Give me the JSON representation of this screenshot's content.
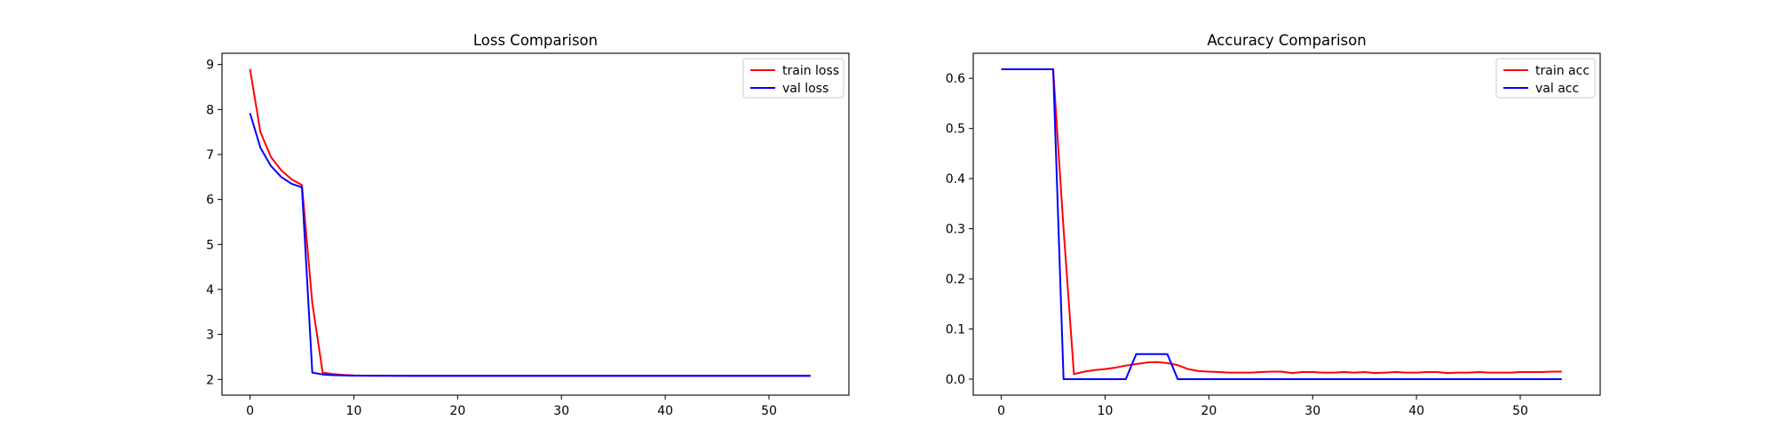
{
  "chart_data": [
    {
      "type": "line",
      "title": "Loss Comparison",
      "xlabel": "",
      "ylabel": "",
      "xlim": [
        -2.7,
        57.7
      ],
      "ylim": [
        1.65,
        9.25
      ],
      "xticks": [
        0,
        10,
        20,
        30,
        40,
        50
      ],
      "xtick_labels": [
        "0",
        "10",
        "20",
        "30",
        "40",
        "50"
      ],
      "yticks": [
        2,
        3,
        4,
        5,
        6,
        7,
        8,
        9
      ],
      "ytick_labels": [
        "2",
        "3",
        "4",
        "5",
        "6",
        "7",
        "8",
        "9"
      ],
      "grid": false,
      "legend": "top-right",
      "x": [
        0,
        1,
        2,
        3,
        4,
        5,
        6,
        7,
        8,
        9,
        10,
        11,
        12,
        13,
        14,
        15,
        16,
        17,
        18,
        19,
        20,
        21,
        22,
        23,
        24,
        25,
        26,
        27,
        28,
        29,
        30,
        31,
        32,
        33,
        34,
        35,
        36,
        37,
        38,
        39,
        40,
        41,
        42,
        43,
        44,
        45,
        46,
        47,
        48,
        49,
        50,
        51,
        52,
        53,
        54
      ],
      "series": [
        {
          "name": "train loss",
          "color": "#ff0000",
          "values": [
            8.9,
            7.5,
            6.95,
            6.65,
            6.45,
            6.32,
            3.7,
            2.15,
            2.12,
            2.1,
            2.09,
            2.085,
            2.083,
            2.082,
            2.081,
            2.081,
            2.08,
            2.08,
            2.08,
            2.08,
            2.08,
            2.08,
            2.08,
            2.08,
            2.08,
            2.08,
            2.08,
            2.08,
            2.08,
            2.08,
            2.08,
            2.08,
            2.08,
            2.08,
            2.08,
            2.08,
            2.08,
            2.08,
            2.08,
            2.08,
            2.08,
            2.08,
            2.08,
            2.08,
            2.08,
            2.08,
            2.08,
            2.08,
            2.08,
            2.08,
            2.08,
            2.08,
            2.08,
            2.08,
            2.08
          ]
        },
        {
          "name": "val loss",
          "color": "#0000ff",
          "values": [
            7.92,
            7.15,
            6.75,
            6.5,
            6.35,
            6.27,
            2.15,
            2.11,
            2.095,
            2.09,
            2.085,
            2.083,
            2.082,
            2.081,
            2.08,
            2.08,
            2.08,
            2.08,
            2.08,
            2.08,
            2.08,
            2.08,
            2.08,
            2.08,
            2.08,
            2.08,
            2.08,
            2.08,
            2.08,
            2.08,
            2.08,
            2.08,
            2.08,
            2.08,
            2.08,
            2.08,
            2.08,
            2.08,
            2.08,
            2.08,
            2.08,
            2.08,
            2.08,
            2.08,
            2.08,
            2.08,
            2.08,
            2.08,
            2.08,
            2.08,
            2.08,
            2.08,
            2.08,
            2.08,
            2.08
          ]
        }
      ]
    },
    {
      "type": "line",
      "title": "Accuracy Comparison",
      "xlabel": "",
      "ylabel": "",
      "xlim": [
        -2.7,
        57.7
      ],
      "ylim": [
        -0.032,
        0.65
      ],
      "xticks": [
        0,
        10,
        20,
        30,
        40,
        50
      ],
      "xtick_labels": [
        "0",
        "10",
        "20",
        "30",
        "40",
        "50"
      ],
      "yticks": [
        0.0,
        0.1,
        0.2,
        0.3,
        0.4,
        0.5,
        0.6
      ],
      "ytick_labels": [
        "0.0",
        "0.1",
        "0.2",
        "0.3",
        "0.4",
        "0.5",
        "0.6"
      ],
      "grid": false,
      "legend": "top-right",
      "x": [
        0,
        1,
        2,
        3,
        4,
        5,
        6,
        7,
        8,
        9,
        10,
        11,
        12,
        13,
        14,
        15,
        16,
        17,
        18,
        19,
        20,
        21,
        22,
        23,
        24,
        25,
        26,
        27,
        28,
        29,
        30,
        31,
        32,
        33,
        34,
        35,
        36,
        37,
        38,
        39,
        40,
        41,
        42,
        43,
        44,
        45,
        46,
        47,
        48,
        49,
        50,
        51,
        52,
        53,
        54
      ],
      "series": [
        {
          "name": "train acc",
          "color": "#ff0000",
          "values": [
            0.618,
            0.618,
            0.618,
            0.618,
            0.618,
            0.618,
            0.3,
            0.01,
            0.015,
            0.018,
            0.02,
            0.023,
            0.027,
            0.03,
            0.033,
            0.034,
            0.032,
            0.028,
            0.02,
            0.016,
            0.015,
            0.014,
            0.013,
            0.013,
            0.013,
            0.014,
            0.015,
            0.015,
            0.012,
            0.014,
            0.014,
            0.013,
            0.013,
            0.014,
            0.013,
            0.014,
            0.012,
            0.013,
            0.014,
            0.013,
            0.013,
            0.014,
            0.014,
            0.012,
            0.013,
            0.013,
            0.014,
            0.013,
            0.013,
            0.013,
            0.014,
            0.014,
            0.014,
            0.015,
            0.015
          ]
        },
        {
          "name": "val acc",
          "color": "#0000ff",
          "values": [
            0.618,
            0.618,
            0.618,
            0.618,
            0.618,
            0.618,
            0.0,
            0.0,
            0.0,
            0.0,
            0.0,
            0.0,
            0.0,
            0.05,
            0.05,
            0.05,
            0.05,
            0.0,
            0.0,
            0.0,
            0.0,
            0.0,
            0.0,
            0.0,
            0.0,
            0.0,
            0.0,
            0.0,
            0.0,
            0.0,
            0.0,
            0.0,
            0.0,
            0.0,
            0.0,
            0.0,
            0.0,
            0.0,
            0.0,
            0.0,
            0.0,
            0.0,
            0.0,
            0.0,
            0.0,
            0.0,
            0.0,
            0.0,
            0.0,
            0.0,
            0.0,
            0.0,
            0.0,
            0.0,
            0.0
          ]
        }
      ]
    }
  ]
}
